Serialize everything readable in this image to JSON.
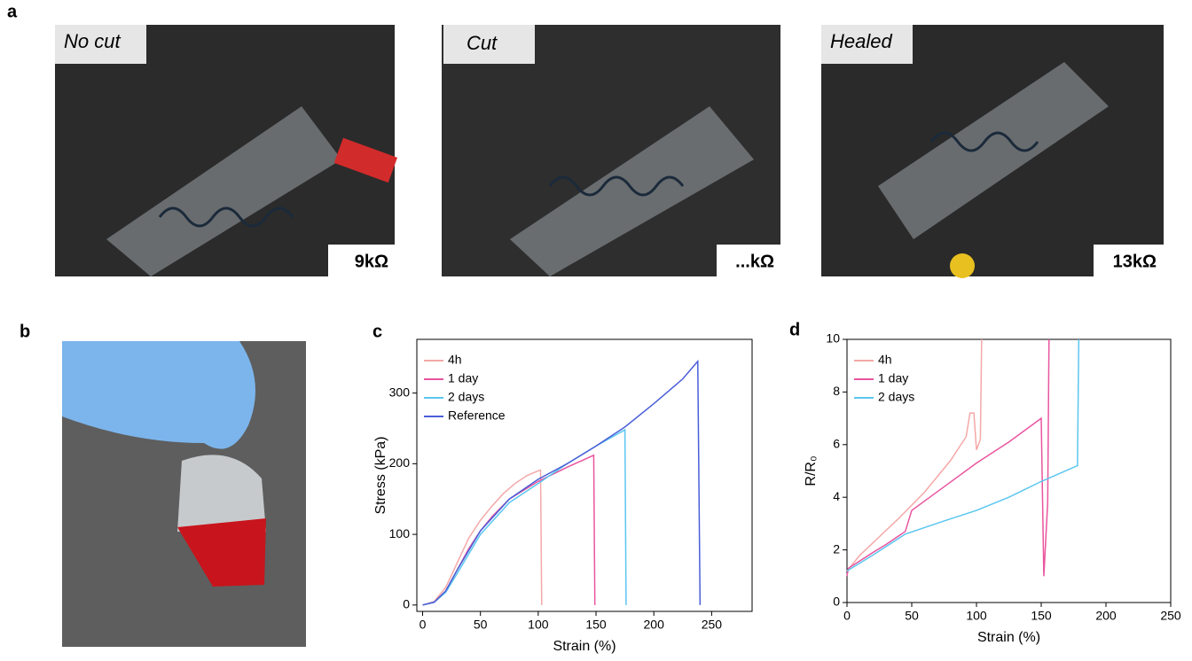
{
  "panels": [
    "a",
    "b",
    "c",
    "d"
  ],
  "photos": [
    {
      "label": "No cut",
      "resistance": "9kΩ"
    },
    {
      "label": "Cut",
      "resistance": "...kΩ"
    },
    {
      "label": "Healed",
      "resistance": "13kΩ"
    }
  ],
  "chart_data": [
    {
      "type": "line",
      "xlabel": "Strain  (%)",
      "ylabel": "Stress (kPa)",
      "xlim": [
        -5,
        285
      ],
      "ylim": [
        -9,
        376
      ],
      "xticks": [
        0,
        50,
        100,
        150,
        200,
        250
      ],
      "yticks": [
        0,
        100,
        200,
        300
      ],
      "legend": "upper-left",
      "series": [
        {
          "name": "4h",
          "color": "#f4a8a8",
          "x": [
            0,
            10,
            20,
            30,
            40,
            50,
            60,
            70,
            80,
            90,
            100,
            102,
            103
          ],
          "values": [
            0,
            5,
            25,
            60,
            95,
            120,
            140,
            158,
            172,
            183,
            190,
            191,
            0
          ]
        },
        {
          "name": "1 day",
          "color": "#e9559f",
          "x": [
            0,
            10,
            20,
            30,
            40,
            50,
            60,
            75,
            100,
            125,
            148,
            149
          ],
          "values": [
            0,
            4,
            20,
            50,
            80,
            105,
            125,
            150,
            175,
            195,
            212,
            0
          ]
        },
        {
          "name": "2 days",
          "color": "#5cc6f0",
          "x": [
            0,
            10,
            20,
            30,
            50,
            75,
            100,
            125,
            150,
            175,
            176
          ],
          "values": [
            0,
            4,
            18,
            45,
            100,
            145,
            172,
            200,
            225,
            248,
            0
          ]
        },
        {
          "name": "Reference",
          "color": "#4a5ed8",
          "x": [
            0,
            10,
            20,
            30,
            50,
            75,
            100,
            125,
            150,
            175,
            200,
            225,
            238,
            240
          ],
          "values": [
            0,
            4,
            20,
            50,
            105,
            150,
            178,
            200,
            225,
            252,
            285,
            320,
            345,
            0
          ]
        }
      ]
    },
    {
      "type": "line",
      "xlabel": "Strain (%)",
      "ylabel": "R/R₀",
      "xlim": [
        0,
        250
      ],
      "ylim": [
        0,
        10
      ],
      "xticks": [
        0,
        50,
        100,
        150,
        200,
        250
      ],
      "yticks": [
        0,
        2,
        4,
        6,
        8,
        10
      ],
      "legend": "upper-left",
      "series": [
        {
          "name": "4h",
          "color": "#f4a8a8",
          "x": [
            0,
            10,
            25,
            40,
            60,
            80,
            92,
            95,
            98,
            100,
            103,
            104
          ],
          "values": [
            1.2,
            1.8,
            2.5,
            3.2,
            4.2,
            5.4,
            6.3,
            7.2,
            7.2,
            5.8,
            6.2,
            10
          ]
        },
        {
          "name": "1 day",
          "color": "#e9559f",
          "x": [
            0,
            1,
            20,
            30,
            45,
            50,
            75,
            100,
            125,
            150,
            152,
            155,
            156
          ],
          "values": [
            1,
            1.3,
            1.9,
            2.2,
            2.7,
            3.5,
            4.4,
            5.3,
            6.1,
            7,
            1,
            3.8,
            10
          ]
        },
        {
          "name": "2 days",
          "color": "#5cc6f0",
          "x": [
            0,
            20,
            45,
            75,
            100,
            125,
            150,
            178,
            179
          ],
          "values": [
            1.2,
            1.8,
            2.6,
            3.1,
            3.5,
            4,
            4.6,
            5.2,
            10
          ]
        }
      ]
    }
  ]
}
